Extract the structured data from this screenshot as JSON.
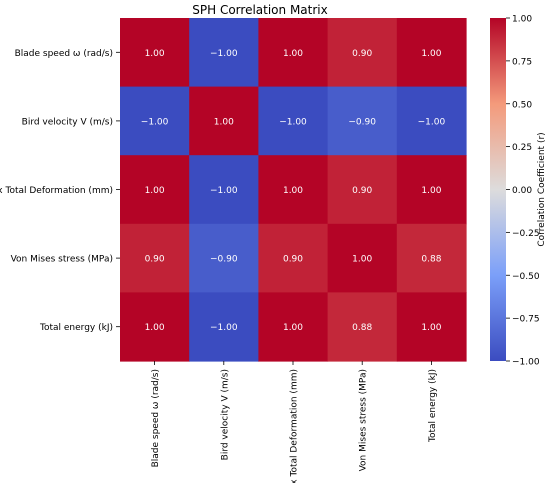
{
  "chart_data": {
    "type": "heatmap",
    "title": "SPH Correlation Matrix",
    "row_labels": [
      "Blade speed ω (rad/s)",
      "Bird velocity V (m/s)",
      "Max Total Deformation (mm)",
      "Von Mises stress (MPa)",
      "Total energy (kJ)"
    ],
    "col_labels": [
      "Blade speed ω (rad/s)",
      "Bird velocity V (m/s)",
      "Max Total Deformation (mm)",
      "Von Mises stress (MPa)",
      "Total energy (kJ)"
    ],
    "values": [
      [
        1.0,
        -1.0,
        1.0,
        0.9,
        1.0
      ],
      [
        -1.0,
        1.0,
        -1.0,
        -0.9,
        -1.0
      ],
      [
        1.0,
        -1.0,
        1.0,
        0.9,
        1.0
      ],
      [
        0.9,
        -0.9,
        0.9,
        1.0,
        0.88
      ],
      [
        1.0,
        -1.0,
        1.0,
        0.88,
        1.0
      ]
    ],
    "cell_labels": [
      [
        "1.00",
        "−1.00",
        "1.00",
        "0.90",
        "1.00"
      ],
      [
        "−1.00",
        "1.00",
        "−1.00",
        "−0.90",
        "−1.00"
      ],
      [
        "1.00",
        "−1.00",
        "1.00",
        "0.90",
        "1.00"
      ],
      [
        "0.90",
        "−0.90",
        "0.90",
        "1.00",
        "0.88"
      ],
      [
        "1.00",
        "−1.00",
        "1.00",
        "0.88",
        "1.00"
      ]
    ],
    "colormap": "coolwarm",
    "vmin": -1.0,
    "vmax": 1.0,
    "colorbar": {
      "label": "Correlation Coefficient (r)",
      "ticks": [
        1.0,
        0.75,
        0.5,
        0.25,
        0.0,
        -0.25,
        -0.5,
        -0.75,
        -1.0
      ],
      "tick_labels": [
        "1.00",
        "0.75",
        "0.50",
        "0.25",
        "0.00",
        "−0.25",
        "−0.50",
        "−0.75",
        "−1.00"
      ]
    }
  }
}
